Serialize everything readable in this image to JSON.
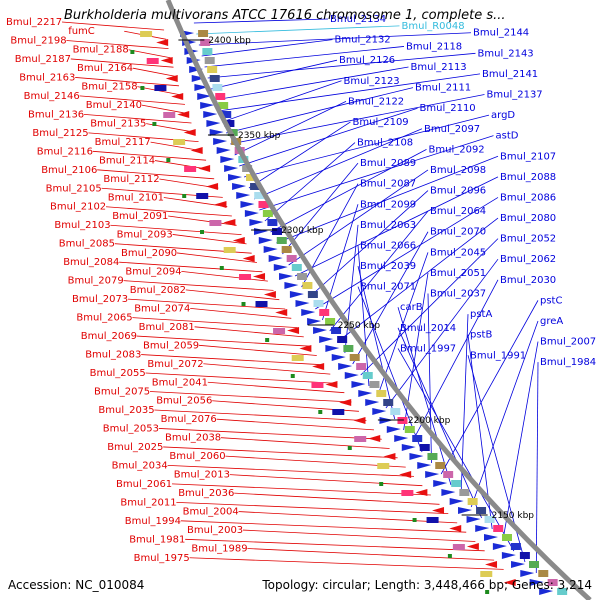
{
  "title": "Burkholderia multivorans ATCC 17616 chromosome 1, complete s...",
  "accession": "Accession: NC_010084",
  "topology": "Topology: circular; Length: 3,448,466 bp; Genes: 3,214",
  "colors": {
    "reverse_label": "#e00000",
    "forward_label": "#0000dd",
    "rna_label": "#33bbdd",
    "backbone": "#808080"
  },
  "ticks": [
    "2400 kbp",
    "2350 kbp",
    "2300 kbp",
    "2250 kbp",
    "2200 kbp",
    "2150 kbp"
  ],
  "left_labels": [
    "Bmul_2217",
    "fumC",
    "Bmul_2198",
    "Bmul_2188",
    "Bmul_2187",
    "Bmul_2164",
    "Bmul_2163",
    "Bmul_2158",
    "Bmul_2146",
    "Bmul_2140",
    "Bmul_2136",
    "Bmul_2135",
    "Bmul_2125",
    "Bmul_2117",
    "Bmul_2116",
    "Bmul_2114",
    "Bmul_2106",
    "Bmul_2112",
    "Bmul_2105",
    "Bmul_2101",
    "Bmul_2102",
    "Bmul_2091",
    "Bmul_2103",
    "Bmul_2093",
    "Bmul_2085",
    "Bmul_2090",
    "Bmul_2084",
    "Bmul_2094",
    "Bmul_2079",
    "Bmul_2082",
    "Bmul_2073",
    "Bmul_2074",
    "Bmul_2065",
    "Bmul_2081",
    "Bmul_2069",
    "Bmul_2059",
    "Bmul_2083",
    "Bmul_2072",
    "Bmul_2055",
    "Bmul_2041",
    "Bmul_2075",
    "Bmul_2056",
    "Bmul_2035",
    "Bmul_2076",
    "Bmul_2053",
    "Bmul_2038",
    "Bmul_2025",
    "Bmul_2060",
    "Bmul_2034",
    "Bmul_2013",
    "Bmul_2061",
    "Bmul_2036",
    "Bmul_2011",
    "Bmul_2004",
    "Bmul_1994",
    "Bmul_2003",
    "Bmul_1981",
    "Bmul_1989",
    "Bmul_1975"
  ],
  "right_labels": [
    "Bmul_2134",
    "Bmul_R0048",
    "Bmul_2144",
    "Bmul_2132",
    "Bmul_2118",
    "Bmul_2143",
    "Bmul_2126",
    "Bmul_2113",
    "Bmul_2141",
    "Bmul_2123",
    "Bmul_2111",
    "Bmul_2137",
    "Bmul_2122",
    "Bmul_2110",
    "argD",
    "Bmul_2109",
    "Bmul_2097",
    "astD",
    "Bmul_2108",
    "Bmul_2092",
    "Bmul_2107",
    "Bmul_2089",
    "Bmul_2098",
    "Bmul_2088",
    "Bmul_2087",
    "Bmul_2096",
    "Bmul_2086",
    "Bmul_2099",
    "Bmul_2064",
    "Bmul_2080",
    "Bmul_2063",
    "Bmul_2070",
    "Bmul_2052",
    "Bmul_2066",
    "Bmul_2045",
    "Bmul_2062",
    "Bmul_2039",
    "Bmul_2051",
    "Bmul_2030",
    "Bmul_2071",
    "Bmul_2037",
    "pstC",
    "carB",
    "pstA",
    "greA",
    "Bmul_2014",
    "pstB",
    "Bmul_2007",
    "Bmul_1997",
    "Bmul_1991",
    "Bmul_1984"
  ]
}
